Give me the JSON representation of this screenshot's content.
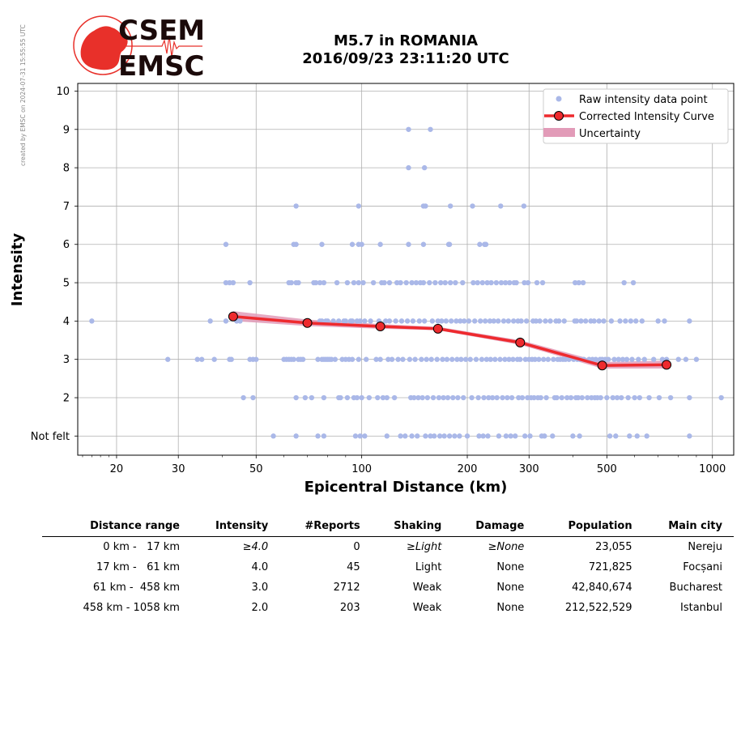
{
  "logo": {
    "line1": "CSEM",
    "line2": "EMSC",
    "colors": {
      "red": "#e8302a",
      "dark": "#1b0a0a"
    }
  },
  "watermark": "created by EMSC on 2024-07-31 15:55:55 UTC",
  "chart_data": {
    "type": "scatter",
    "title": "M5.7 in ROMANIA",
    "subtitle": "2016/09/23 23:11:20 UTC",
    "xlabel": "Epicentral Distance (km)",
    "ylabel": "Intensity",
    "xscale": "log",
    "xlim": [
      15.5,
      1150
    ],
    "ylim": [
      0.5,
      10.2
    ],
    "xticks": [
      20,
      30,
      50,
      100,
      200,
      300,
      500,
      1000
    ],
    "xtick_labels": [
      "20",
      "30",
      "50",
      "100",
      "200",
      "300",
      "500",
      "1000"
    ],
    "yticks": [
      1,
      2,
      3,
      4,
      5,
      6,
      7,
      8,
      9,
      10
    ],
    "ytick_labels": [
      "Not felt",
      "2",
      "3",
      "4",
      "5",
      "6",
      "7",
      "8",
      "9",
      "10"
    ],
    "grid": true,
    "legend_position": "top-right",
    "legend": [
      "Raw intensity data point",
      "Corrected Intensity Curve",
      "Uncertainty"
    ],
    "colors": {
      "raw": "#aab8e8",
      "curve": "#ee2a2e",
      "marker_edge": "#000000",
      "band": "#e29bb8"
    },
    "raw_points": [
      [
        17,
        4
      ],
      [
        28,
        3
      ],
      [
        34,
        3
      ],
      [
        35,
        3
      ],
      [
        37,
        4
      ],
      [
        38,
        3
      ],
      [
        41,
        6
      ],
      [
        41,
        5
      ],
      [
        41,
        4
      ],
      [
        42,
        5
      ],
      [
        42,
        3
      ],
      [
        42.5,
        3
      ],
      [
        43,
        5
      ],
      [
        44,
        4
      ],
      [
        45,
        4
      ],
      [
        46,
        2
      ],
      [
        48,
        5
      ],
      [
        48,
        3
      ],
      [
        49,
        3
      ],
      [
        49,
        2
      ],
      [
        50,
        3
      ],
      [
        56,
        1
      ],
      [
        60,
        3
      ],
      [
        61,
        3
      ],
      [
        62,
        5
      ],
      [
        62,
        3
      ],
      [
        63,
        3
      ],
      [
        63,
        5
      ],
      [
        64,
        6
      ],
      [
        64,
        3
      ],
      [
        65,
        5
      ],
      [
        65,
        7
      ],
      [
        65,
        1
      ],
      [
        65,
        6
      ],
      [
        65,
        2
      ],
      [
        66,
        3
      ],
      [
        66,
        5
      ],
      [
        67,
        3
      ],
      [
        68,
        3
      ],
      [
        69,
        2
      ],
      [
        72,
        2
      ],
      [
        73,
        5
      ],
      [
        74,
        5
      ],
      [
        75,
        3
      ],
      [
        75,
        1
      ],
      [
        76,
        4
      ],
      [
        76,
        5
      ],
      [
        77,
        3
      ],
      [
        77,
        4
      ],
      [
        77,
        6
      ],
      [
        78,
        5
      ],
      [
        78,
        3
      ],
      [
        78,
        2
      ],
      [
        78,
        1
      ],
      [
        79,
        3
      ],
      [
        79,
        4
      ],
      [
        80,
        3
      ],
      [
        80,
        4
      ],
      [
        81,
        3
      ],
      [
        82,
        3
      ],
      [
        83,
        4
      ],
      [
        84,
        3
      ],
      [
        85,
        5
      ],
      [
        86,
        4
      ],
      [
        86,
        2
      ],
      [
        87,
        2
      ],
      [
        88,
        3
      ],
      [
        89,
        4
      ],
      [
        90,
        3
      ],
      [
        90,
        4
      ],
      [
        91,
        5
      ],
      [
        91,
        2
      ],
      [
        92,
        3
      ],
      [
        93,
        4
      ],
      [
        94,
        6
      ],
      [
        94,
        3
      ],
      [
        94,
        4
      ],
      [
        95,
        5
      ],
      [
        95,
        2
      ],
      [
        96,
        1
      ],
      [
        97,
        2
      ],
      [
        97,
        4
      ],
      [
        98,
        7
      ],
      [
        98,
        5
      ],
      [
        98,
        6
      ],
      [
        98,
        3
      ],
      [
        99,
        4
      ],
      [
        99,
        1
      ],
      [
        100,
        6
      ],
      [
        100,
        2
      ],
      [
        101,
        5
      ],
      [
        102,
        4
      ],
      [
        102,
        1
      ],
      [
        103,
        3
      ],
      [
        105,
        2
      ],
      [
        106,
        4
      ],
      [
        108,
        5
      ],
      [
        110,
        3
      ],
      [
        111,
        2
      ],
      [
        112,
        4
      ],
      [
        113,
        6
      ],
      [
        113,
        3
      ],
      [
        114,
        5
      ],
      [
        115,
        2
      ],
      [
        116,
        5
      ],
      [
        117,
        4
      ],
      [
        118,
        1
      ],
      [
        118,
        2
      ],
      [
        119,
        3
      ],
      [
        120,
        4
      ],
      [
        120,
        5
      ],
      [
        122,
        3
      ],
      [
        124,
        2
      ],
      [
        125,
        4
      ],
      [
        126,
        5
      ],
      [
        127,
        3
      ],
      [
        129,
        1
      ],
      [
        129,
        5
      ],
      [
        130,
        4
      ],
      [
        131,
        3
      ],
      [
        133,
        1
      ],
      [
        134,
        5
      ],
      [
        135,
        4
      ],
      [
        136,
        9
      ],
      [
        136,
        8
      ],
      [
        136,
        6
      ],
      [
        137,
        3
      ],
      [
        138,
        2
      ],
      [
        139,
        5
      ],
      [
        139,
        1
      ],
      [
        140,
        4
      ],
      [
        141,
        2
      ],
      [
        142,
        3
      ],
      [
        143,
        5
      ],
      [
        144,
        1
      ],
      [
        145,
        2
      ],
      [
        146,
        4
      ],
      [
        147,
        5
      ],
      [
        148,
        3
      ],
      [
        149,
        2
      ],
      [
        150,
        7
      ],
      [
        150,
        6
      ],
      [
        150,
        5
      ],
      [
        151,
        8
      ],
      [
        151,
        4
      ],
      [
        152,
        7
      ],
      [
        152,
        1
      ],
      [
        153,
        3
      ],
      [
        154,
        2
      ],
      [
        156,
        5
      ],
      [
        157,
        1
      ],
      [
        157,
        9
      ],
      [
        158,
        3
      ],
      [
        159,
        4
      ],
      [
        160,
        2
      ],
      [
        161,
        1
      ],
      [
        162,
        5
      ],
      [
        164,
        3
      ],
      [
        165,
        4
      ],
      [
        166,
        2
      ],
      [
        167,
        1
      ],
      [
        168,
        5
      ],
      [
        169,
        4
      ],
      [
        170,
        3
      ],
      [
        171,
        2
      ],
      [
        172,
        1
      ],
      [
        173,
        5
      ],
      [
        174,
        4
      ],
      [
        175,
        3
      ],
      [
        176,
        2
      ],
      [
        177,
        6
      ],
      [
        178,
        6
      ],
      [
        178,
        1
      ],
      [
        179,
        7
      ],
      [
        179,
        5
      ],
      [
        180,
        4
      ],
      [
        181,
        3
      ],
      [
        182,
        2
      ],
      [
        184,
        1
      ],
      [
        185,
        5
      ],
      [
        186,
        4
      ],
      [
        187,
        3
      ],
      [
        188,
        2
      ],
      [
        190,
        1
      ],
      [
        191,
        4
      ],
      [
        192,
        3
      ],
      [
        194,
        5
      ],
      [
        195,
        2
      ],
      [
        196,
        4
      ],
      [
        198,
        3
      ],
      [
        200,
        1
      ],
      [
        202,
        4
      ],
      [
        204,
        3
      ],
      [
        206,
        2
      ],
      [
        207,
        7
      ],
      [
        208,
        5
      ],
      [
        210,
        4
      ],
      [
        212,
        3
      ],
      [
        214,
        5
      ],
      [
        215,
        2
      ],
      [
        216,
        1
      ],
      [
        217,
        6
      ],
      [
        218,
        4
      ],
      [
        220,
        3
      ],
      [
        221,
        5
      ],
      [
        222,
        1
      ],
      [
        223,
        2
      ],
      [
        224,
        6
      ],
      [
        225,
        4
      ],
      [
        226,
        6
      ],
      [
        227,
        3
      ],
      [
        228,
        5
      ],
      [
        229,
        1
      ],
      [
        230,
        2
      ],
      [
        232,
        4
      ],
      [
        233,
        3
      ],
      [
        234,
        5
      ],
      [
        236,
        2
      ],
      [
        238,
        4
      ],
      [
        240,
        3
      ],
      [
        242,
        5
      ],
      [
        243,
        2
      ],
      [
        245,
        4
      ],
      [
        246,
        1
      ],
      [
        248,
        3
      ],
      [
        249,
        7
      ],
      [
        250,
        5
      ],
      [
        252,
        2
      ],
      [
        254,
        4
      ],
      [
        256,
        3
      ],
      [
        257,
        5
      ],
      [
        258,
        1
      ],
      [
        260,
        2
      ],
      [
        262,
        4
      ],
      [
        263,
        3
      ],
      [
        264,
        5
      ],
      [
        266,
        1
      ],
      [
        268,
        2
      ],
      [
        270,
        3
      ],
      [
        271,
        4
      ],
      [
        272,
        5
      ],
      [
        274,
        1
      ],
      [
        276,
        5
      ],
      [
        278,
        3
      ],
      [
        279,
        4
      ],
      [
        280,
        2
      ],
      [
        283,
        3
      ],
      [
        285,
        4
      ],
      [
        287,
        2
      ],
      [
        290,
        7
      ],
      [
        291,
        5
      ],
      [
        292,
        1
      ],
      [
        293,
        3
      ],
      [
        295,
        4
      ],
      [
        297,
        2
      ],
      [
        298,
        5
      ],
      [
        300,
        3
      ],
      [
        302,
        1
      ],
      [
        304,
        2
      ],
      [
        306,
        3
      ],
      [
        308,
        4
      ],
      [
        310,
        2
      ],
      [
        312,
        3
      ],
      [
        314,
        4
      ],
      [
        316,
        5
      ],
      [
        318,
        2
      ],
      [
        320,
        3
      ],
      [
        322,
        4
      ],
      [
        324,
        2
      ],
      [
        326,
        1
      ],
      [
        328,
        5
      ],
      [
        330,
        3
      ],
      [
        332,
        1
      ],
      [
        334,
        4
      ],
      [
        336,
        2
      ],
      [
        340,
        3
      ],
      [
        345,
        4
      ],
      [
        350,
        1
      ],
      [
        352,
        3
      ],
      [
        355,
        2
      ],
      [
        358,
        4
      ],
      [
        360,
        2
      ],
      [
        362,
        3
      ],
      [
        365,
        4
      ],
      [
        368,
        3
      ],
      [
        372,
        2
      ],
      [
        375,
        3
      ],
      [
        378,
        4
      ],
      [
        381,
        3
      ],
      [
        385,
        2
      ],
      [
        390,
        3
      ],
      [
        395,
        2
      ],
      [
        400,
        1
      ],
      [
        402,
        3
      ],
      [
        405,
        4
      ],
      [
        406,
        5
      ],
      [
        408,
        2
      ],
      [
        410,
        4
      ],
      [
        412,
        3
      ],
      [
        414,
        2
      ],
      [
        416,
        5
      ],
      [
        418,
        1
      ],
      [
        420,
        3
      ],
      [
        422,
        4
      ],
      [
        425,
        2
      ],
      [
        428,
        5
      ],
      [
        430,
        3
      ],
      [
        435,
        4
      ],
      [
        440,
        2
      ],
      [
        445,
        3
      ],
      [
        450,
        4
      ],
      [
        452,
        2
      ],
      [
        455,
        3
      ],
      [
        460,
        4
      ],
      [
        462,
        2
      ],
      [
        465,
        3
      ],
      [
        470,
        2
      ],
      [
        475,
        4
      ],
      [
        478,
        3
      ],
      [
        480,
        2
      ],
      [
        485,
        3
      ],
      [
        490,
        4
      ],
      [
        495,
        3
      ],
      [
        500,
        2
      ],
      [
        505,
        3
      ],
      [
        510,
        1
      ],
      [
        515,
        4
      ],
      [
        520,
        2
      ],
      [
        525,
        3
      ],
      [
        530,
        1
      ],
      [
        535,
        2
      ],
      [
        540,
        3
      ],
      [
        545,
        4
      ],
      [
        550,
        2
      ],
      [
        555,
        3
      ],
      [
        560,
        5
      ],
      [
        565,
        4
      ],
      [
        570,
        3
      ],
      [
        575,
        2
      ],
      [
        580,
        1
      ],
      [
        585,
        4
      ],
      [
        590,
        3
      ],
      [
        595,
        5
      ],
      [
        600,
        2
      ],
      [
        605,
        4
      ],
      [
        610,
        1
      ],
      [
        615,
        3
      ],
      [
        620,
        2
      ],
      [
        630,
        4
      ],
      [
        640,
        3
      ],
      [
        650,
        1
      ],
      [
        660,
        2
      ],
      [
        680,
        3
      ],
      [
        700,
        4
      ],
      [
        705,
        2
      ],
      [
        720,
        3
      ],
      [
        730,
        4
      ],
      [
        740,
        3
      ],
      [
        760,
        2
      ],
      [
        800,
        3
      ],
      [
        840,
        3
      ],
      [
        860,
        4
      ],
      [
        860,
        2
      ],
      [
        860,
        1
      ],
      [
        900,
        3
      ],
      [
        1060,
        2
      ]
    ],
    "curve": [
      {
        "x": 43,
        "y": 4.12,
        "lo": 4.0,
        "hi": 4.26
      },
      {
        "x": 70,
        "y": 3.95,
        "lo": 3.87,
        "hi": 4.04
      },
      {
        "x": 113,
        "y": 3.86,
        "lo": 3.8,
        "hi": 3.92
      },
      {
        "x": 165,
        "y": 3.8,
        "lo": 3.76,
        "hi": 3.85
      },
      {
        "x": 283,
        "y": 3.44,
        "lo": 3.38,
        "hi": 3.5
      },
      {
        "x": 485,
        "y": 2.84,
        "lo": 2.76,
        "hi": 2.93
      },
      {
        "x": 740,
        "y": 2.86,
        "lo": 2.76,
        "hi": 2.97
      }
    ]
  },
  "table": {
    "headers": [
      "Distance range",
      "Intensity",
      "#Reports",
      "Shaking",
      "Damage",
      "Population",
      "Main city"
    ],
    "rows": [
      {
        "range": "0 km -   17 km",
        "intensity": "≥4.0",
        "reports": "0",
        "shaking": "≥Light",
        "damage": "≥None",
        "population": "23,055",
        "city": "Nereju",
        "italic": true
      },
      {
        "range": "17 km -   61 km",
        "intensity": "4.0",
        "reports": "45",
        "shaking": "Light",
        "damage": "None",
        "population": "721,825",
        "city": "Focșani",
        "italic": false
      },
      {
        "range": "61 km -  458 km",
        "intensity": "3.0",
        "reports": "2712",
        "shaking": "Weak",
        "damage": "None",
        "population": "42,840,674",
        "city": "Bucharest",
        "italic": false
      },
      {
        "range": "458 km - 1058 km",
        "intensity": "2.0",
        "reports": "203",
        "shaking": "Weak",
        "damage": "None",
        "population": "212,522,529",
        "city": "Istanbul",
        "italic": false
      }
    ]
  }
}
